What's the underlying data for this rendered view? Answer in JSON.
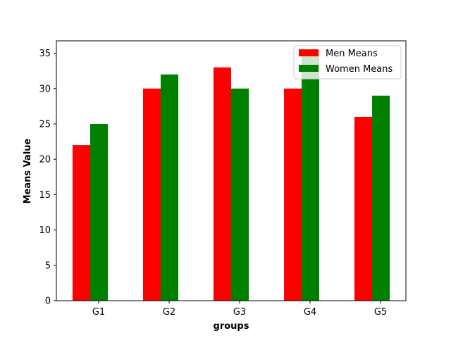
{
  "chart_data": {
    "type": "bar",
    "categories": [
      "G1",
      "G2",
      "G3",
      "G4",
      "G5"
    ],
    "series": [
      {
        "name": "Men Means",
        "values": [
          22,
          30,
          33,
          30,
          26
        ],
        "color": "#ff0000"
      },
      {
        "name": "Women Means",
        "values": [
          25,
          32,
          30,
          35,
          29
        ],
        "color": "#008000"
      }
    ],
    "title": "",
    "xlabel": "groups",
    "ylabel": "Means Value",
    "ylim": [
      0,
      36.75
    ],
    "yticks": [
      "0",
      "5",
      "10",
      "15",
      "20",
      "25",
      "30",
      "35"
    ],
    "grid": false,
    "legend_position": "top-right"
  }
}
